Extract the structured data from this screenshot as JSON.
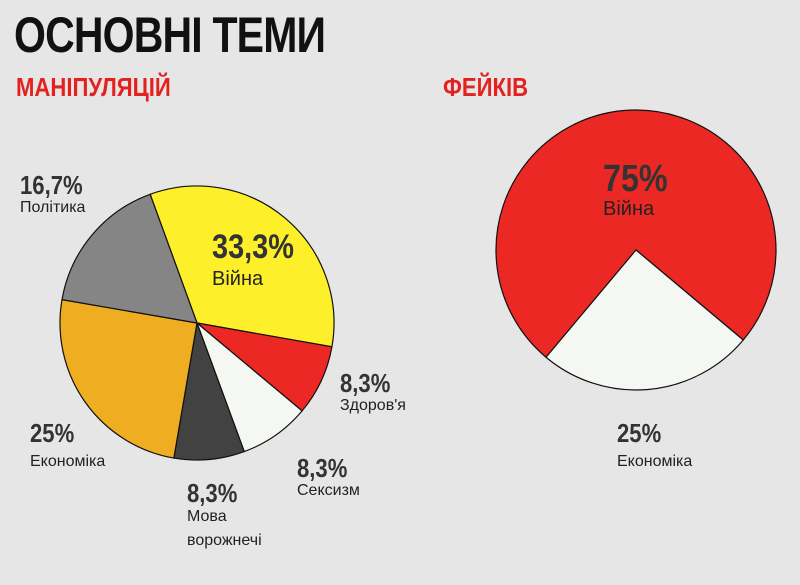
{
  "title": "ОСНОВНІ ТЕМИ",
  "chart_data": [
    {
      "type": "pie",
      "title": "МАНІПУЛЯЦІЙ",
      "categories": [
        "Війна",
        "Здоров'я",
        "Сексизм",
        "Мова ворожнечі",
        "Економіка",
        "Політика"
      ],
      "values": [
        33.3,
        8.3,
        8.3,
        8.3,
        25,
        16.7
      ],
      "value_labels": [
        "33,3%",
        "8,3%",
        "8,3%",
        "8,3%",
        "25%",
        "16,7%"
      ],
      "colors": [
        "#fdf02a",
        "#ec2824",
        "#f5f7f3",
        "#424242",
        "#efae22",
        "#858585"
      ]
    },
    {
      "type": "pie",
      "title": "ФЕЙКІВ",
      "categories": [
        "Війна",
        "Економіка"
      ],
      "values": [
        75,
        25
      ],
      "value_labels": [
        "75%",
        "25%"
      ],
      "colors": [
        "#ec2824",
        "#f5f7f3"
      ]
    }
  ]
}
